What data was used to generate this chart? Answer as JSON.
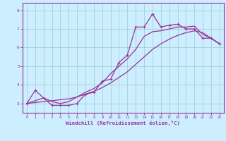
{
  "xlabel": "Windchill (Refroidissement éolien,°C)",
  "bg_color": "#cceeff",
  "line_color": "#993399",
  "grid_color": "#99cccc",
  "axis_color": "#993399",
  "xlim": [
    -0.5,
    23.5
  ],
  "ylim": [
    2.5,
    8.4
  ],
  "xticks": [
    0,
    1,
    2,
    3,
    4,
    5,
    6,
    7,
    8,
    9,
    10,
    11,
    12,
    13,
    14,
    15,
    16,
    17,
    18,
    19,
    20,
    21,
    22,
    23
  ],
  "yticks": [
    3,
    4,
    5,
    6,
    7,
    8
  ],
  "series1_x": [
    0,
    1,
    2,
    3,
    4,
    5,
    6,
    7,
    8,
    9,
    10,
    11,
    12,
    13,
    14,
    15,
    16,
    17,
    18,
    19,
    20,
    21,
    22,
    23
  ],
  "series1_y": [
    3.0,
    3.7,
    3.3,
    2.9,
    2.9,
    2.9,
    3.0,
    3.5,
    3.6,
    4.2,
    4.3,
    5.2,
    5.6,
    7.1,
    7.1,
    7.8,
    7.1,
    7.2,
    7.25,
    7.0,
    7.0,
    6.5,
    6.5,
    6.2
  ],
  "series2_x": [
    0,
    1,
    2,
    3,
    4,
    5,
    6,
    7,
    8,
    9,
    10,
    11,
    12,
    13,
    14,
    15,
    16,
    17,
    18,
    19,
    20,
    21,
    22,
    23
  ],
  "series2_y": [
    3.0,
    3.15,
    3.3,
    3.1,
    3.0,
    3.1,
    3.35,
    3.6,
    3.8,
    4.1,
    4.6,
    5.0,
    5.4,
    5.9,
    6.6,
    6.85,
    6.9,
    7.0,
    7.1,
    7.1,
    7.15,
    6.7,
    6.5,
    6.2
  ],
  "series3_x": [
    0,
    1,
    2,
    3,
    4,
    5,
    6,
    7,
    8,
    9,
    10,
    11,
    12,
    13,
    14,
    15,
    16,
    17,
    18,
    19,
    20,
    21,
    22,
    23
  ],
  "series3_y": [
    3.0,
    3.05,
    3.1,
    3.15,
    3.2,
    3.25,
    3.35,
    3.5,
    3.65,
    3.85,
    4.1,
    4.4,
    4.7,
    5.1,
    5.5,
    5.9,
    6.2,
    6.45,
    6.65,
    6.8,
    6.9,
    6.8,
    6.5,
    6.2
  ]
}
